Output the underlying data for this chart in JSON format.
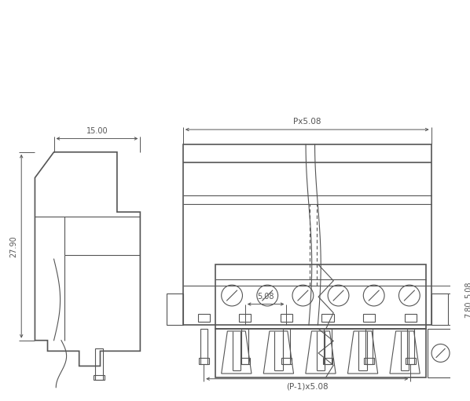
{
  "bg_color": "#ffffff",
  "line_color": "#555555",
  "lw": 0.8,
  "lw_thick": 1.2,
  "dim_15": "15.00",
  "dim_px508": "Px5.08",
  "dim_27_90": "27.90",
  "dim_508a": "5.08",
  "dim_508b": "5.08",
  "dim_780": "7.80",
  "dim_p1x508": "(P-1)x5.08"
}
